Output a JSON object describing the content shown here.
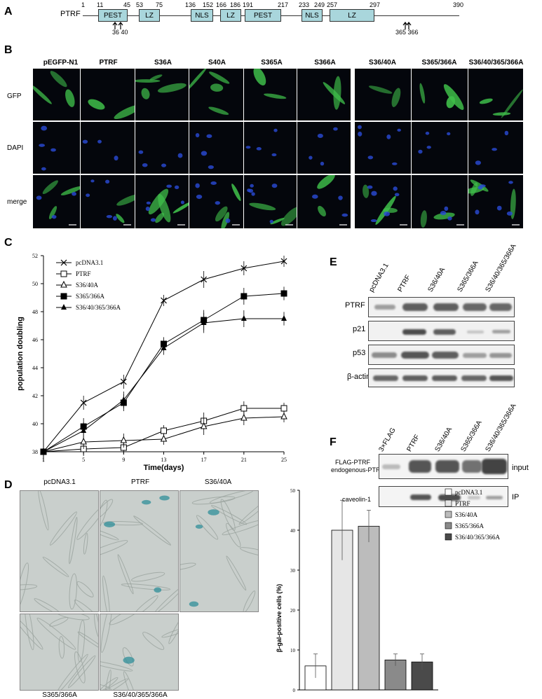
{
  "panelA": {
    "label": "A",
    "protein": "PTRF",
    "positions": [
      "1",
      "11",
      "45",
      "53",
      "75",
      "136",
      "152",
      "166",
      "186",
      "191",
      "217",
      "233",
      "249",
      "257",
      "297",
      "390"
    ],
    "domains": [
      "PEST",
      "LZ",
      "NLS",
      "LZ",
      "PEST",
      "NLS",
      "LZ"
    ],
    "sites_left": "36 40",
    "sites_right": "365 366"
  },
  "panelB": {
    "label": "B",
    "columns": [
      "pEGFP-N1",
      "PTRF",
      "S36A",
      "S40A",
      "S365A",
      "S366A",
      "S36/40A",
      "S365/366A",
      "S36/40/365/366A"
    ],
    "rows": [
      "GFP",
      "DAPI",
      "merge"
    ]
  },
  "panelC": {
    "label": "C",
    "chart_data": {
      "type": "line",
      "xlabel": "Time(days)",
      "ylabel": "population doubling",
      "x": [
        1,
        5,
        9,
        13,
        17,
        21,
        25
      ],
      "x_ticks": [
        "1",
        "5",
        "9",
        "13",
        "17",
        "21",
        "25"
      ],
      "y_ticks": [
        "38",
        "40",
        "42",
        "44",
        "46",
        "48",
        "50",
        "52"
      ],
      "ylim": [
        38,
        52
      ],
      "series": [
        {
          "name": "pcDNA3.1",
          "marker": "x",
          "values": [
            38,
            41.5,
            43,
            48.8,
            50.3,
            51.1,
            51.6
          ]
        },
        {
          "name": "PTRF",
          "marker": "open-square",
          "values": [
            38,
            38.2,
            38.3,
            39.5,
            40.2,
            41.1,
            41.1
          ]
        },
        {
          "name": "S36/40A",
          "marker": "open-triangle",
          "values": [
            38,
            38.7,
            38.8,
            38.9,
            39.8,
            40.4,
            40.5
          ]
        },
        {
          "name": "S365/366A",
          "marker": "filled-square",
          "values": [
            38,
            39.8,
            41.5,
            45.7,
            47.4,
            49.1,
            49.3
          ]
        },
        {
          "name": "S36/40/365/366A",
          "marker": "filled-triangle",
          "values": [
            38,
            39.5,
            41.7,
            45.4,
            47.2,
            47.5,
            47.5
          ]
        }
      ]
    }
  },
  "panelD": {
    "label": "D",
    "photos": [
      "pcDNA3.1",
      "PTRF",
      "S36/40A",
      "S365/366A",
      "S36/40/365/366A"
    ],
    "chart_data": {
      "type": "bar",
      "ylabel": "β-gal-positive cells (%)",
      "categories": [
        "pcDNA3.1",
        "PTRF",
        "S36/40A",
        "S365/366A",
        "S36/40/365/366A"
      ],
      "values": [
        6,
        40,
        41,
        7.5,
        7
      ],
      "errors": [
        3,
        7.5,
        4,
        1.5,
        2
      ],
      "colors": [
        "#ffffff",
        "#e6e6e6",
        "#bcbcbc",
        "#8a8a8a",
        "#4a4a4a"
      ],
      "y_ticks": [
        "0",
        "10",
        "20",
        "30",
        "40",
        "50"
      ],
      "ylim": [
        0,
        50
      ]
    }
  },
  "panelE": {
    "label": "E",
    "lanes": [
      "pcDNA3.1",
      "PTRF",
      "S36/40A",
      "S365/366A",
      "S36/40/365/366A"
    ],
    "rows": [
      "PTRF",
      "p21",
      "p53",
      "β-actin"
    ]
  },
  "panelF": {
    "label": "F",
    "lanes": [
      "3×FLAG",
      "PTRF",
      "S36/40A",
      "S365/366A",
      "S36/40/365/366A"
    ],
    "left_labels": [
      "FLAG-PTRF",
      "endogenous-PTRF",
      "caveolin-1"
    ],
    "right_labels": [
      "input",
      "IP"
    ]
  }
}
